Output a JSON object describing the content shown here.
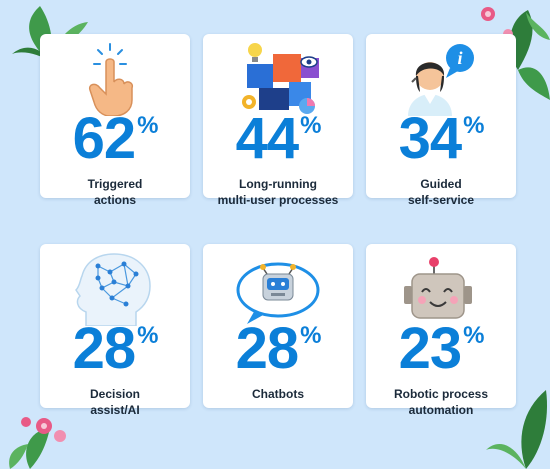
{
  "stats": [
    {
      "value": "62",
      "unit": "%",
      "line1": "Triggered",
      "line2": "actions",
      "icon": "tap-hand-icon"
    },
    {
      "value": "44",
      "unit": "%",
      "line1": "Long-running",
      "line2": "multi-user processes",
      "icon": "puzzle-collaboration-icon"
    },
    {
      "value": "34",
      "unit": "%",
      "line1": "Guided",
      "line2": "self-service",
      "icon": "support-agent-icon"
    },
    {
      "value": "28",
      "unit": "%",
      "line1": "Decision",
      "line2": "assist/AI",
      "icon": "ai-brain-icon"
    },
    {
      "value": "28",
      "unit": "%",
      "line1": "Chatbots",
      "line2": "",
      "icon": "chatbot-bubble-icon"
    },
    {
      "value": "23",
      "unit": "%",
      "line1": "Robotic process",
      "line2": "automation",
      "icon": "robot-head-icon"
    }
  ],
  "colors": {
    "accent": "#0b7fd8",
    "background": "#cfe6fb",
    "card": "#ffffff",
    "text": "#1b2a3a"
  }
}
